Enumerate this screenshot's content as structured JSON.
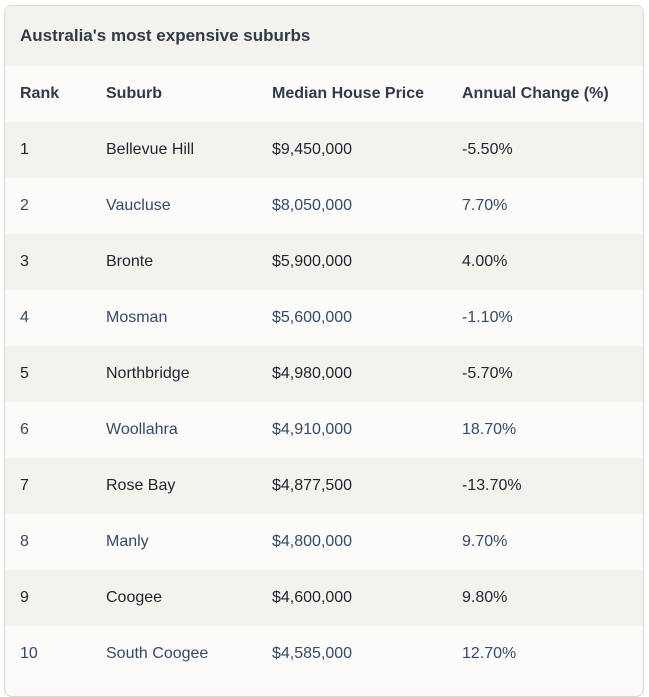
{
  "title": "Australia's most expensive suburbs",
  "columns": [
    "Rank",
    "Suburb",
    "Median House Price",
    "Annual Change (%)"
  ],
  "rows": [
    {
      "rank": "1",
      "suburb": "Bellevue Hill",
      "price": "$9,450,000",
      "change": "-5.50%"
    },
    {
      "rank": "2",
      "suburb": "Vaucluse",
      "price": "$8,050,000",
      "change": "7.70%"
    },
    {
      "rank": "3",
      "suburb": "Bronte",
      "price": "$5,900,000",
      "change": "4.00%"
    },
    {
      "rank": "4",
      "suburb": "Mosman",
      "price": "$5,600,000",
      "change": "-1.10%"
    },
    {
      "rank": "5",
      "suburb": "Northbridge",
      "price": "$4,980,000",
      "change": "-5.70%"
    },
    {
      "rank": "6",
      "suburb": "Woollahra",
      "price": "$4,910,000",
      "change": "18.70%"
    },
    {
      "rank": "7",
      "suburb": "Rose Bay",
      "price": "$4,877,500",
      "change": "-13.70%"
    },
    {
      "rank": "8",
      "suburb": "Manly",
      "price": "$4,800,000",
      "change": "9.70%"
    },
    {
      "rank": "9",
      "suburb": "Coogee",
      "price": "$4,600,000",
      "change": "9.80%"
    },
    {
      "rank": "10",
      "suburb": "South Coogee",
      "price": "$4,585,000",
      "change": "12.70%"
    }
  ]
}
